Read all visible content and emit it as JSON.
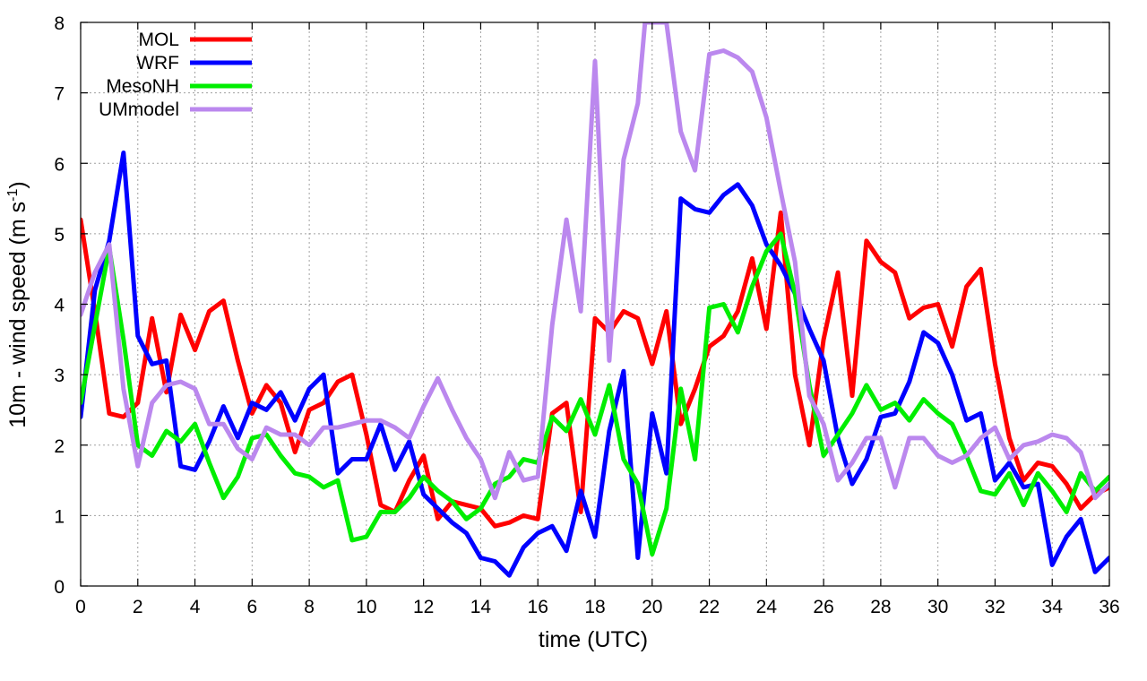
{
  "chart_data": {
    "type": "line",
    "title": "",
    "xlabel": "time (UTC)",
    "ylabel_prefix": "10m - wind speed  (m s",
    "ylabel_superscript": "-1",
    "ylabel_suffix": ")",
    "xlim": [
      0,
      36
    ],
    "ylim": [
      0,
      8
    ],
    "xticks": [
      0,
      2,
      4,
      6,
      8,
      10,
      12,
      14,
      16,
      18,
      20,
      22,
      24,
      26,
      28,
      30,
      32,
      34,
      36
    ],
    "yticks": [
      0,
      1,
      2,
      3,
      4,
      5,
      6,
      7,
      8
    ],
    "grid": true,
    "legend_position": "top-left",
    "series": [
      {
        "name": "MOL",
        "color": "#ff0000",
        "x": [
          0,
          0.5,
          1,
          1.5,
          2,
          2.5,
          3,
          3.5,
          4,
          4.5,
          5,
          5.5,
          6,
          6.5,
          7,
          7.5,
          8,
          8.5,
          9,
          9.5,
          10,
          10.5,
          11,
          11.5,
          12,
          12.5,
          13,
          13.5,
          14,
          14.5,
          15,
          15.5,
          16,
          16.5,
          17,
          17.5,
          18,
          18.5,
          19,
          19.5,
          20,
          20.5,
          21,
          21.5,
          22,
          22.5,
          23,
          23.5,
          24,
          24.5,
          25,
          25.5,
          26,
          26.5,
          27,
          27.5,
          28,
          28.5,
          29,
          29.5,
          30,
          30.5,
          31,
          31.5,
          32,
          32.5,
          33,
          33.5,
          34,
          34.5,
          35,
          35.5,
          36
        ],
        "y": [
          5.2,
          3.9,
          2.45,
          2.4,
          2.6,
          3.8,
          2.75,
          3.85,
          3.35,
          3.9,
          4.05,
          3.2,
          2.45,
          2.85,
          2.6,
          1.9,
          2.5,
          2.6,
          2.9,
          3.0,
          2.15,
          1.15,
          1.05,
          1.5,
          1.85,
          0.95,
          1.2,
          1.15,
          1.1,
          0.85,
          0.9,
          1.0,
          0.95,
          2.45,
          2.6,
          1.05,
          3.8,
          3.6,
          3.9,
          3.8,
          3.15,
          3.9,
          2.3,
          2.8,
          3.4,
          3.55,
          3.9,
          4.65,
          3.65,
          5.3,
          3.0,
          2.0,
          3.5,
          4.45,
          2.7,
          4.9,
          4.6,
          4.45,
          3.8,
          3.95,
          4.0,
          3.4,
          4.25,
          4.5,
          3.15,
          2.1,
          1.5,
          1.75,
          1.7,
          1.45,
          1.1,
          1.3,
          1.4
        ]
      },
      {
        "name": "WRF",
        "color": "#0000ff",
        "x": [
          0,
          0.5,
          1,
          1.5,
          2,
          2.5,
          3,
          3.5,
          4,
          4.5,
          5,
          5.5,
          6,
          6.5,
          7,
          7.5,
          8,
          8.5,
          9,
          9.5,
          10,
          10.5,
          11,
          11.5,
          12,
          12.5,
          13,
          13.5,
          14,
          14.5,
          15,
          15.5,
          16,
          16.5,
          17,
          17.5,
          18,
          18.5,
          19,
          19.5,
          20,
          20.5,
          21,
          21.5,
          22,
          22.5,
          23,
          23.5,
          24,
          24.5,
          25,
          25.5,
          26,
          26.5,
          27,
          27.5,
          28,
          28.5,
          29,
          29.5,
          30,
          30.5,
          31,
          31.5,
          32,
          32.5,
          33,
          33.5,
          34,
          34.5,
          35,
          35.5,
          36
        ],
        "y": [
          2.4,
          4.2,
          4.9,
          6.15,
          3.55,
          3.15,
          3.2,
          1.7,
          1.65,
          2.05,
          2.55,
          2.1,
          2.6,
          2.5,
          2.75,
          2.35,
          2.8,
          3.0,
          1.6,
          1.8,
          1.8,
          2.3,
          1.65,
          2.05,
          1.3,
          1.1,
          0.9,
          0.75,
          0.4,
          0.35,
          0.15,
          0.55,
          0.75,
          0.85,
          0.5,
          1.35,
          0.7,
          2.2,
          3.05,
          0.4,
          2.45,
          1.6,
          5.5,
          5.35,
          5.3,
          5.55,
          5.7,
          5.4,
          4.85,
          4.55,
          4.15,
          3.65,
          3.2,
          2.1,
          1.45,
          1.8,
          2.4,
          2.45,
          2.9,
          3.6,
          3.45,
          3.0,
          2.35,
          2.45,
          1.5,
          1.75,
          1.4,
          1.45,
          0.3,
          0.7,
          0.95,
          0.2,
          0.4
        ]
      },
      {
        "name": "MesoNH",
        "color": "#00ee00",
        "x": [
          0,
          0.5,
          1,
          1.5,
          2,
          2.5,
          3,
          3.5,
          4,
          4.5,
          5,
          5.5,
          6,
          6.5,
          7,
          7.5,
          8,
          8.5,
          9,
          9.5,
          10,
          10.5,
          11,
          11.5,
          12,
          12.5,
          13,
          13.5,
          14,
          14.5,
          15,
          15.5,
          16,
          16.5,
          17,
          17.5,
          18,
          18.5,
          19,
          19.5,
          20,
          20.5,
          21,
          21.5,
          22,
          22.5,
          23,
          23.5,
          24,
          24.5,
          25,
          25.5,
          26,
          26.5,
          27,
          27.5,
          28,
          28.5,
          29,
          29.5,
          30,
          30.5,
          31,
          31.5,
          32,
          32.5,
          33,
          33.5,
          34,
          34.5,
          35,
          35.5,
          36
        ],
        "y": [
          2.6,
          3.7,
          4.8,
          3.5,
          2.0,
          1.85,
          2.2,
          2.05,
          2.3,
          1.75,
          1.25,
          1.55,
          2.1,
          2.15,
          1.85,
          1.6,
          1.55,
          1.4,
          1.5,
          0.65,
          0.7,
          1.05,
          1.05,
          1.25,
          1.55,
          1.35,
          1.2,
          0.95,
          1.1,
          1.45,
          1.55,
          1.8,
          1.75,
          2.4,
          2.2,
          2.65,
          2.15,
          2.85,
          1.8,
          1.45,
          0.45,
          1.1,
          2.8,
          1.8,
          3.95,
          4.0,
          3.6,
          4.25,
          4.75,
          5.0,
          4.15,
          2.85,
          1.85,
          2.15,
          2.45,
          2.85,
          2.5,
          2.6,
          2.35,
          2.65,
          2.45,
          2.3,
          1.85,
          1.35,
          1.3,
          1.6,
          1.15,
          1.6,
          1.35,
          1.05,
          1.6,
          1.35,
          1.55
        ]
      },
      {
        "name": "UMmodel",
        "color": "#bb88ee",
        "x": [
          0,
          0.5,
          1,
          1.5,
          2,
          2.5,
          3,
          3.5,
          4,
          4.5,
          5,
          5.5,
          6,
          6.5,
          7,
          7.5,
          8,
          8.5,
          9,
          9.5,
          10,
          10.5,
          11,
          11.5,
          12,
          12.5,
          13,
          13.5,
          14,
          14.5,
          15,
          15.5,
          16,
          16.5,
          17,
          17.5,
          18,
          18.5,
          19,
          19.5,
          19.75,
          20.5,
          21,
          21.5,
          22,
          22.5,
          23,
          23.5,
          24,
          24.5,
          25,
          25.5,
          26,
          26.5,
          27,
          27.5,
          28,
          28.5,
          29,
          29.5,
          30,
          30.5,
          31,
          31.5,
          32,
          32.5,
          33,
          33.5,
          34,
          34.5,
          35,
          35.5,
          36
        ],
        "y": [
          3.85,
          4.45,
          4.85,
          2.8,
          1.7,
          2.6,
          2.85,
          2.9,
          2.8,
          2.3,
          2.3,
          1.95,
          1.8,
          2.25,
          2.15,
          2.15,
          2.0,
          2.25,
          2.25,
          2.3,
          2.35,
          2.35,
          2.25,
          2.1,
          2.55,
          2.95,
          2.5,
          2.1,
          1.8,
          1.25,
          1.9,
          1.5,
          1.55,
          3.7,
          5.2,
          3.9,
          7.45,
          3.2,
          6.05,
          6.85,
          8.0,
          8.0,
          6.45,
          5.9,
          7.55,
          7.6,
          7.5,
          7.3,
          6.65,
          5.6,
          4.6,
          2.7,
          2.3,
          1.5,
          1.75,
          2.1,
          2.1,
          1.4,
          2.1,
          2.1,
          1.85,
          1.75,
          1.85,
          2.1,
          2.25,
          1.8,
          2.0,
          2.05,
          2.15,
          2.1,
          1.9,
          1.25,
          1.45
        ]
      }
    ]
  }
}
